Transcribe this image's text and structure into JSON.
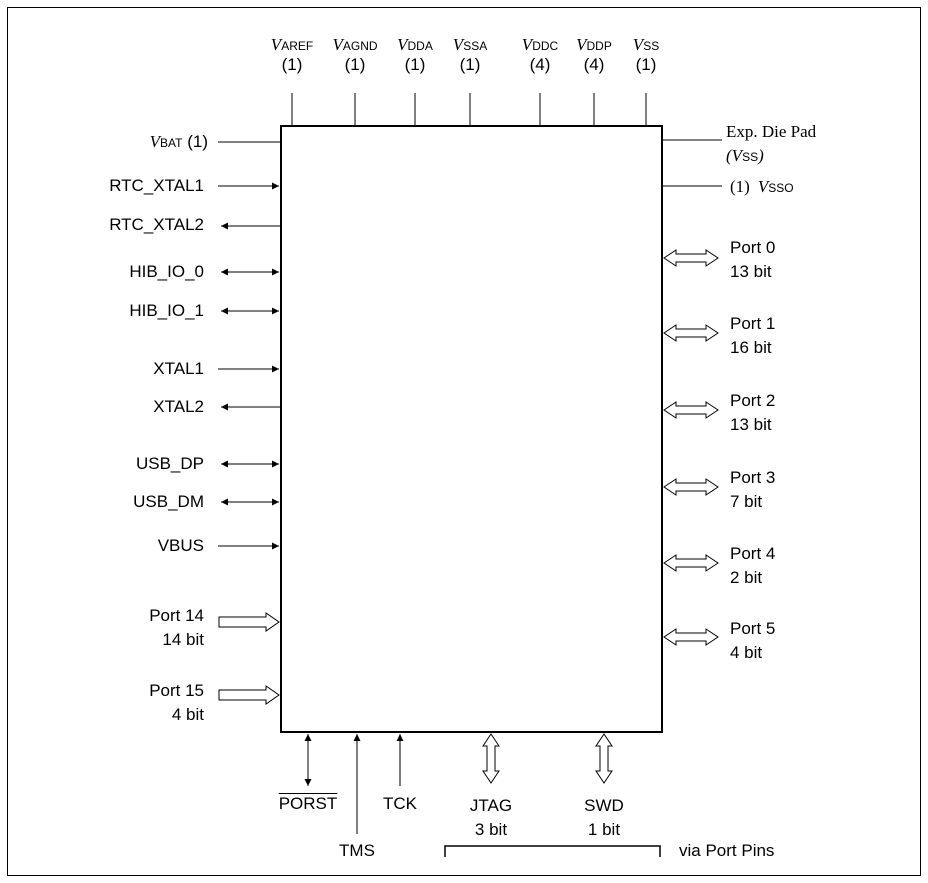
{
  "top_pins": [
    {
      "name": "top-pin-varef",
      "v": "V",
      "sub": "AREF",
      "count": "(1)"
    },
    {
      "name": "top-pin-vagnd",
      "v": "V",
      "sub": "AGND",
      "count": "(1)"
    },
    {
      "name": "top-pin-vdda",
      "v": "V",
      "sub": "DDA",
      "count": "(1)"
    },
    {
      "name": "top-pin-vssa",
      "v": "V",
      "sub": "SSA",
      "count": "(1)"
    },
    {
      "name": "top-pin-vddc",
      "v": "V",
      "sub": "DDC",
      "count": "(4)"
    },
    {
      "name": "top-pin-vddp",
      "v": "V",
      "sub": "DDP",
      "count": "(4)"
    },
    {
      "name": "top-pin-vss",
      "v": "V",
      "sub": "SS",
      "count": "(1)"
    }
  ],
  "left_pins": {
    "vbat": {
      "v": "V",
      "sub": "BAT",
      "count": " (1)"
    },
    "rtc_xtal1": "RTC_XTAL1",
    "rtc_xtal2": "RTC_XTAL2",
    "hib_io_0": "HIB_IO_0",
    "hib_io_1": "HIB_IO_1",
    "xtal1": "XTAL1",
    "xtal2": "XTAL2",
    "usb_dp": "USB_DP",
    "usb_dm": "USB_DM",
    "vbus": "VBUS",
    "port14": {
      "name": "Port 14",
      "width": "14 bit"
    },
    "port15": {
      "name": "Port 15",
      "width": "4 bit"
    }
  },
  "right_pins": {
    "die_pad": {
      "line1": "Exp. Die Pad",
      "open": "(",
      "v": "V",
      "sub": "SS",
      "close": ")"
    },
    "vsso": {
      "count": "(1)",
      "v": "V",
      "sub": "SSO"
    },
    "ports": [
      {
        "name": "Port 0",
        "width": "13 bit"
      },
      {
        "name": "Port 1",
        "width": "16 bit"
      },
      {
        "name": "Port 2",
        "width": "13 bit"
      },
      {
        "name": "Port 3",
        "width": "7 bit"
      },
      {
        "name": "Port 4",
        "width": "2 bit"
      },
      {
        "name": "Port 5",
        "width": "4 bit"
      }
    ]
  },
  "bottom_pins": {
    "porst": "PORST",
    "tms": "TMS",
    "tck": "TCK",
    "jtag": {
      "name": "JTAG",
      "width": "3 bit"
    },
    "swd": {
      "name": "SWD",
      "width": "1 bit"
    },
    "via": "via Port Pins"
  }
}
